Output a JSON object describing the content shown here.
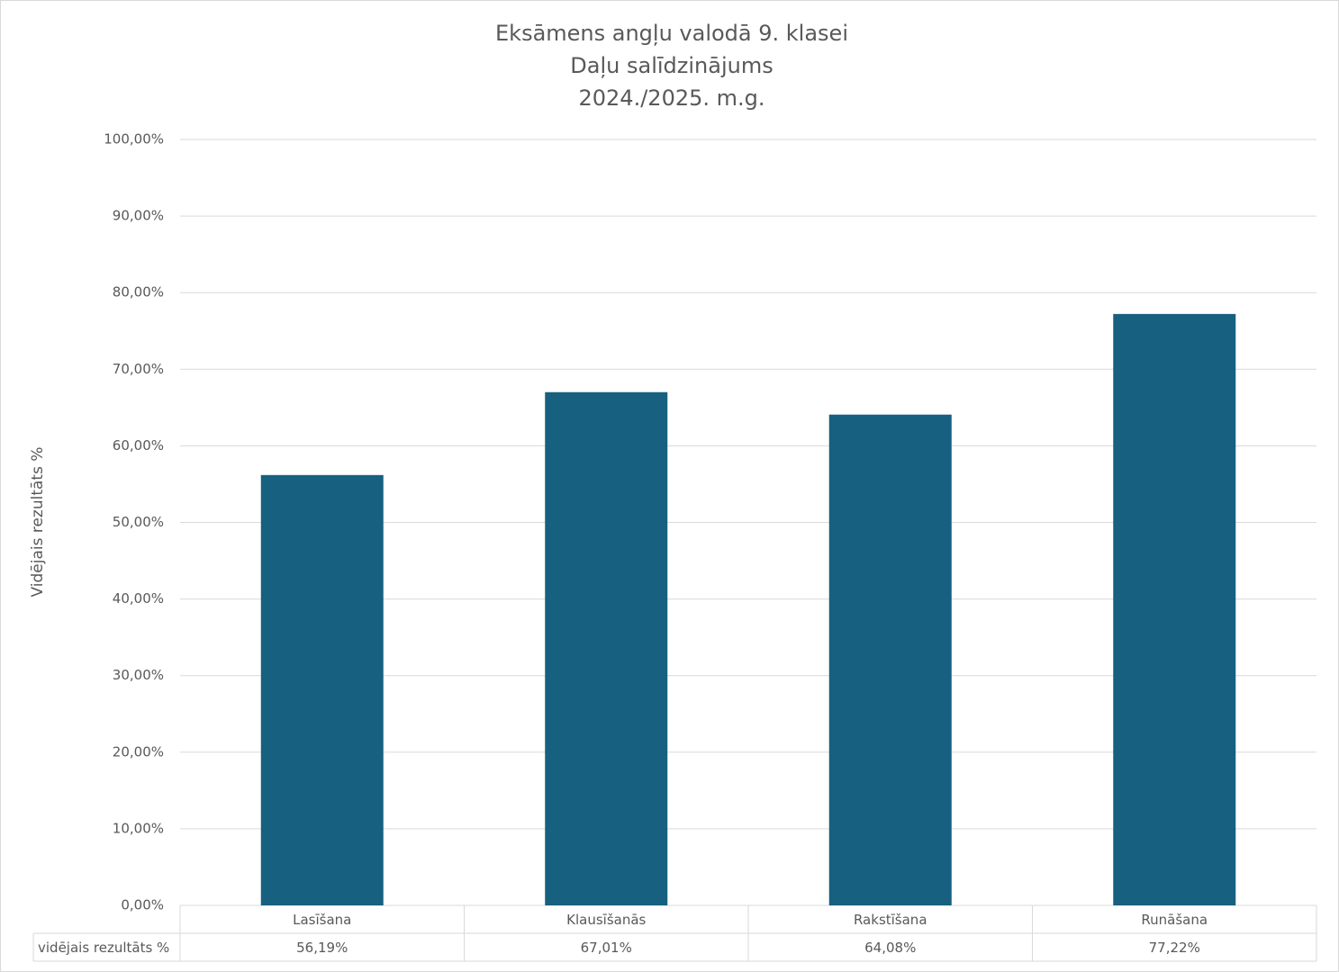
{
  "chart_data": {
    "type": "bar",
    "title": [
      "Eksāmens angļu valodā 9. klasei",
      "Daļu salīdzinājums",
      "2024./2025. m.g."
    ],
    "y_label": "Vidējais rezultāts %",
    "categories": [
      "Lasīšana",
      "Klausīšanās",
      "Rakstīšana",
      "Runāšana"
    ],
    "series": [
      {
        "name": "vidējais rezultāts %",
        "color": "#17607f",
        "values": [
          56.19,
          67.01,
          64.08,
          77.22
        ],
        "value_labels": [
          "56,19%",
          "67,01%",
          "64,08%",
          "77,22%"
        ]
      }
    ],
    "ylim": [
      0,
      100
    ],
    "yticks": [
      {
        "value": 0,
        "label": "0,00%"
      },
      {
        "value": 10,
        "label": "10,00%"
      },
      {
        "value": 20,
        "label": "20,00%"
      },
      {
        "value": 30,
        "label": "30,00%"
      },
      {
        "value": 40,
        "label": "40,00%"
      },
      {
        "value": 50,
        "label": "50,00%"
      },
      {
        "value": 60,
        "label": "60,00%"
      },
      {
        "value": 70,
        "label": "70,00%"
      },
      {
        "value": 80,
        "label": "80,00%"
      },
      {
        "value": 90,
        "label": "90,00%"
      },
      {
        "value": 100,
        "label": "100,00%"
      }
    ],
    "grid": true
  }
}
